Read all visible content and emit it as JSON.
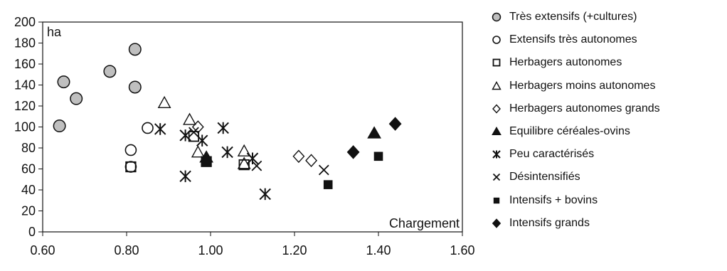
{
  "chart_data": {
    "type": "scatter",
    "title": "",
    "xlabel": "Chargement",
    "ylabel": "ha",
    "xlim": [
      0.6,
      1.6
    ],
    "ylim": [
      0,
      200
    ],
    "xticks": [
      "0.60",
      "0.80",
      "1.00",
      "1.20",
      "1.40",
      "1.60"
    ],
    "yticks": [
      "0",
      "20",
      "40",
      "60",
      "80",
      "100",
      "120",
      "140",
      "160",
      "180",
      "200"
    ],
    "grid": false,
    "legend_position": "right",
    "series": [
      {
        "name": "Très extensifs (+cultures)",
        "marker": "circle-gray",
        "points": [
          [
            0.64,
            101
          ],
          [
            0.65,
            143
          ],
          [
            0.68,
            127
          ],
          [
            0.76,
            153
          ],
          [
            0.82,
            174
          ],
          [
            0.82,
            138
          ]
        ]
      },
      {
        "name": "Extensifs très autonomes",
        "marker": "circle-open",
        "points": [
          [
            0.81,
            78
          ],
          [
            0.81,
            62
          ],
          [
            0.85,
            99
          ]
        ]
      },
      {
        "name": "Herbagers autonomes",
        "marker": "square-open",
        "points": [
          [
            0.81,
            62
          ],
          [
            0.96,
            91
          ],
          [
            0.99,
            67
          ],
          [
            1.08,
            64
          ]
        ]
      },
      {
        "name": "Herbagers moins autonomes",
        "marker": "triangle-open",
        "points": [
          [
            0.89,
            123
          ],
          [
            0.95,
            107
          ],
          [
            0.97,
            76
          ],
          [
            1.08,
            77
          ],
          [
            1.08,
            65
          ]
        ]
      },
      {
        "name": "Herbagers  autonomes grands",
        "marker": "diamond-open",
        "points": [
          [
            0.97,
            100
          ],
          [
            1.21,
            72
          ],
          [
            1.24,
            68
          ]
        ]
      },
      {
        "name": "Equilibre  céréales-ovins",
        "marker": "triangle-filled",
        "points": [
          [
            0.99,
            71
          ],
          [
            1.39,
            94
          ]
        ]
      },
      {
        "name": "Peu caractérisés",
        "marker": "asterisk",
        "points": [
          [
            0.88,
            98
          ],
          [
            0.94,
            53
          ],
          [
            0.94,
            92
          ],
          [
            0.98,
            87
          ],
          [
            1.03,
            99
          ],
          [
            1.04,
            76
          ],
          [
            1.1,
            70
          ],
          [
            1.13,
            36
          ]
        ]
      },
      {
        "name": "Désintensifiés",
        "marker": "x",
        "points": [
          [
            0.96,
            95
          ],
          [
            1.11,
            63
          ],
          [
            1.27,
            59
          ]
        ]
      },
      {
        "name": "Intensifs + bovins",
        "marker": "square-filled",
        "points": [
          [
            0.99,
            67
          ],
          [
            1.28,
            45
          ],
          [
            1.4,
            72
          ]
        ]
      },
      {
        "name": "Intensifs grands",
        "marker": "diamond-filled",
        "points": [
          [
            1.34,
            76
          ],
          [
            1.44,
            103
          ]
        ]
      }
    ]
  },
  "colors": {
    "gray_fill": "#bfbfbf",
    "ink": "#111111",
    "gray_stroke": "#8a8a8a"
  }
}
